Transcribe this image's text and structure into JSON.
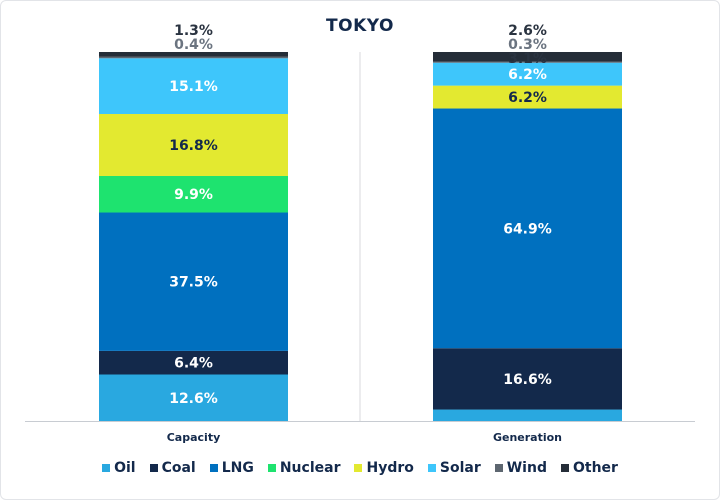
{
  "chart_data": {
    "type": "bar",
    "stacked": true,
    "title": "TOKYO",
    "categories": [
      "Capacity",
      "Generation"
    ],
    "ylim": [
      0,
      100
    ],
    "grid": false,
    "legend_position": "bottom",
    "series": [
      {
        "name": "Oil",
        "color": "#29a8e0",
        "values": [
          12.6,
          3.1
        ]
      },
      {
        "name": "Coal",
        "color": "#13294b",
        "values": [
          6.4,
          16.6
        ]
      },
      {
        "name": "LNG",
        "color": "#0070bf",
        "values": [
          37.5,
          64.9
        ]
      },
      {
        "name": "Nuclear",
        "color": "#1ee36f",
        "values": [
          9.9,
          0
        ]
      },
      {
        "name": "Hydro",
        "color": "#e3e930",
        "values": [
          16.8,
          6.2
        ]
      },
      {
        "name": "Solar",
        "color": "#3ec6fb",
        "values": [
          15.1,
          6.2
        ]
      },
      {
        "name": "Wind",
        "color": "#5d6670",
        "values": [
          0.4,
          0.3
        ]
      },
      {
        "name": "Other",
        "color": "#252d38",
        "values": [
          1.3,
          2.6
        ]
      }
    ],
    "data_labels": [
      [
        "12.6%",
        "6.4%",
        "37.5%",
        "9.9%",
        "16.8%",
        "15.1%",
        "0.4%",
        "1.3%"
      ],
      [
        "3.1%",
        "16.6%",
        "64.9%",
        "",
        "6.2%",
        "6.2%",
        "0.3%",
        "2.6%"
      ]
    ]
  }
}
